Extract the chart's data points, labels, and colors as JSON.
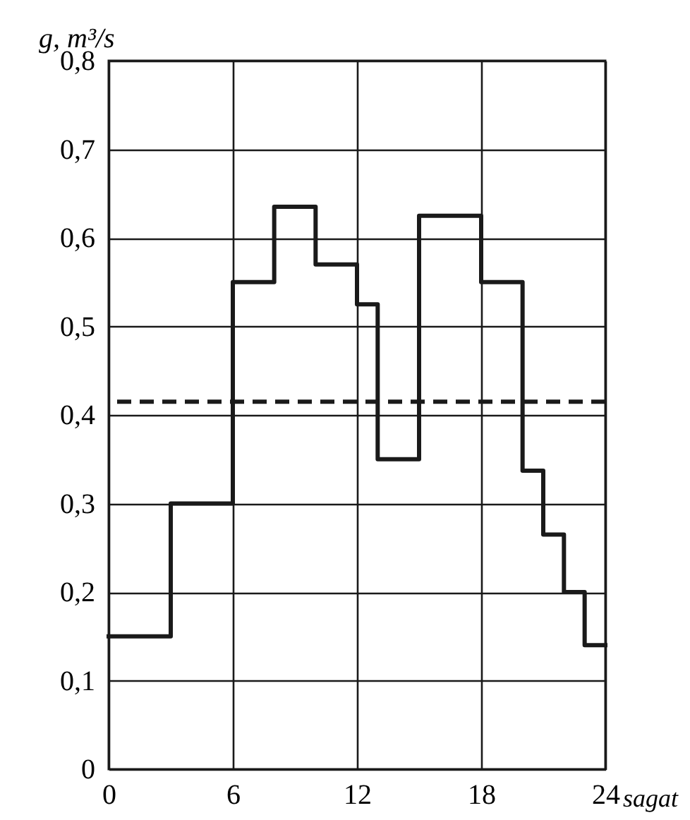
{
  "chart_data": {
    "type": "step",
    "xlabel": "sagat",
    "ylabel": "g, m³/s",
    "x": [
      0,
      3,
      6,
      8,
      10,
      12,
      13,
      15,
      18,
      20,
      21,
      22,
      23,
      24
    ],
    "series": [
      {
        "color": "#1a1a1a",
        "values": [
          0.15,
          0.3,
          0.55,
          0.635,
          0.57,
          0.525,
          0.35,
          0.625,
          0.55,
          0.337,
          0.265,
          0.2,
          0.14,
          0.14
        ]
      }
    ],
    "xlim": [
      0,
      24
    ],
    "xticks": [
      0,
      6,
      12,
      18,
      24
    ],
    "ylim": [
      0,
      0.8
    ],
    "yticks": [
      0,
      {
        "value": 0.1,
        "label": "0,1"
      },
      {
        "value": 0.2,
        "label": "0,2"
      },
      {
        "value": 0.3,
        "label": "0,3"
      },
      {
        "value": 0.4,
        "label": "0,4"
      },
      {
        "value": 0.5,
        "label": "0,5"
      },
      {
        "value": 0.6,
        "label": "0,6"
      },
      {
        "value": 0.7,
        "label": "0,7"
      },
      {
        "value": 0.8,
        "label": "0,8"
      }
    ],
    "ref_lines": [
      {
        "axis": "y",
        "value": 0.415,
        "color": "#1a1a1a",
        "line_style": "dashed"
      }
    ],
    "grid": true,
    "marker": "none",
    "line_style": "solid"
  }
}
